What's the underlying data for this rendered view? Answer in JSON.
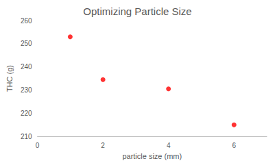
{
  "chart_data": {
    "type": "scatter",
    "title": "Optimizing Particle Size",
    "x_label": "particle size (mm)",
    "y_label": "THC (g)",
    "x": [
      1,
      2,
      4,
      6
    ],
    "values": [
      253,
      234.5,
      230.5,
      215
    ],
    "color": "#ff0000",
    "marker": "circle",
    "xlim": [
      0,
      7
    ],
    "xticks": [
      0,
      2,
      4,
      6
    ],
    "ylim": [
      210,
      260
    ],
    "yticks": [
      210,
      220,
      230,
      240,
      250,
      260
    ],
    "grid": false
  }
}
